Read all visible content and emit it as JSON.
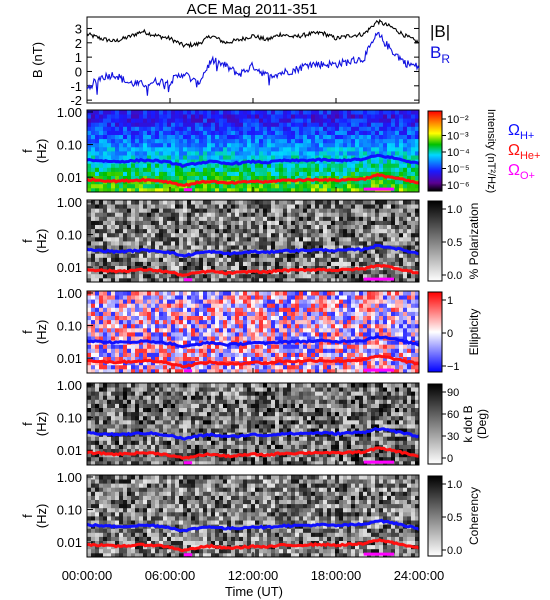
{
  "title": "ACE Mag 2011-351",
  "xlabel": "Time (UT)",
  "x_ticks": [
    "00:00:00",
    "06:00:00",
    "12:00:00",
    "18:00:00",
    "24:00:00"
  ],
  "colors": {
    "B_total": "#000000",
    "B_R": "#1010e0",
    "H": "#1010ff",
    "He": "#ff1010",
    "O": "#ff00ff"
  },
  "chart_data": [
    {
      "type": "line",
      "ylabel": "B (nT)",
      "yticks": [
        "3",
        "2",
        "1",
        "0",
        "-1",
        "-2"
      ],
      "ylim": [
        -2.2,
        3.8
      ],
      "legend": {
        "placement": "right",
        "entries": [
          {
            "name": "|B|",
            "label": "|B|",
            "sub": ""
          },
          {
            "name": "B_R",
            "label": "B",
            "sub": "R"
          }
        ]
      },
      "x_hours": [
        0,
        1,
        2,
        3,
        4,
        5,
        6,
        7,
        8,
        9,
        10,
        11,
        12,
        13,
        14,
        15,
        16,
        17,
        18,
        19,
        20,
        21,
        22,
        23,
        24
      ],
      "series": [
        {
          "name": "|B|",
          "key": "B_total",
          "values": [
            2.6,
            2.3,
            2.1,
            2.4,
            2.8,
            2.5,
            2.3,
            1.8,
            1.9,
            2.5,
            2.0,
            2.2,
            2.5,
            2.2,
            2.6,
            2.4,
            2.6,
            2.7,
            2.3,
            2.5,
            2.6,
            3.5,
            3.1,
            2.5,
            2.0
          ]
        },
        {
          "name": "B_R",
          "key": "B_R",
          "values": [
            -1.2,
            -0.4,
            -0.2,
            -0.8,
            -0.9,
            -0.7,
            -0.7,
            -0.1,
            -0.9,
            0.8,
            0.4,
            -0.2,
            0.4,
            -0.3,
            -0.1,
            0.1,
            0.5,
            0.5,
            0.5,
            0.7,
            0.9,
            2.6,
            1.5,
            0.6,
            0.3
          ]
        }
      ]
    },
    {
      "type": "heatmap",
      "name": "power-spectrum",
      "ylabel": "f (Hz)",
      "yticks": [
        "1.00",
        "0.10",
        "0.01"
      ],
      "colorbar": {
        "label": "Intensity (nT²/Hz)",
        "ticks": [
          "10⁻²",
          "10⁻³",
          "10⁻⁴",
          "10⁻⁵",
          "10⁻⁶"
        ]
      },
      "legend": {
        "placement": "right",
        "entries": [
          {
            "key": "H",
            "label": "Ω",
            "sub": "H+"
          },
          {
            "key": "He",
            "label": "Ω",
            "sub": "He+"
          },
          {
            "key": "O",
            "label": "Ω",
            "sub": "O+"
          }
        ]
      }
    },
    {
      "type": "heatmap",
      "name": "polarization",
      "ylabel": "f (Hz)",
      "yticks": [
        "1.00",
        "0.10",
        "0.01"
      ],
      "colorbar": {
        "label": "% Polarization",
        "ticks": [
          "1.0",
          "0.5",
          "0.0"
        ]
      }
    },
    {
      "type": "heatmap",
      "name": "ellipticity",
      "ylabel": "f (Hz)",
      "yticks": [
        "1.00",
        "0.10",
        "0.01"
      ],
      "colorbar": {
        "label": "Ellipticity",
        "ticks": [
          "1",
          "0",
          "−1"
        ]
      }
    },
    {
      "type": "heatmap",
      "name": "wave-normal-angle",
      "ylabel": "f (Hz)",
      "yticks": [
        "1.00",
        "0.10",
        "0.01"
      ],
      "colorbar": {
        "label": "k dot B",
        "sublabel": "(Deg)",
        "ticks": [
          "90",
          "60",
          "30",
          "0"
        ]
      }
    },
    {
      "type": "heatmap",
      "name": "coherency",
      "ylabel": "f (Hz)",
      "yticks": [
        "1.00",
        "0.10",
        "0.01"
      ],
      "colorbar": {
        "label": "Coherency",
        "ticks": [
          "1.0",
          "0.5",
          "0.0"
        ]
      }
    }
  ],
  "gyrofrequency_lines": {
    "x_hours": [
      0,
      1,
      2,
      3,
      4,
      5,
      6,
      7,
      8,
      9,
      10,
      11,
      12,
      13,
      14,
      15,
      16,
      17,
      18,
      19,
      20,
      21,
      22,
      23,
      24
    ],
    "H_plus_hz": [
      0.034,
      0.032,
      0.03,
      0.031,
      0.033,
      0.032,
      0.028,
      0.022,
      0.027,
      0.03,
      0.026,
      0.027,
      0.03,
      0.028,
      0.032,
      0.032,
      0.033,
      0.034,
      0.032,
      0.034,
      0.035,
      0.046,
      0.04,
      0.032,
      0.026
    ],
    "He_plus_hz": [
      0.0085,
      0.008,
      0.0075,
      0.0078,
      0.0083,
      0.008,
      0.007,
      0.0055,
      0.0068,
      0.0075,
      0.0065,
      0.0068,
      0.0075,
      0.007,
      0.008,
      0.008,
      0.0083,
      0.0085,
      0.008,
      0.0085,
      0.0088,
      0.0115,
      0.01,
      0.008,
      0.0065
    ],
    "O_plus_segments": [
      {
        "start_h": 7.0,
        "end_h": 7.6,
        "hz": 0.0041
      },
      {
        "start_h": 20.0,
        "end_h": 22.2,
        "hz": 0.0043
      }
    ]
  }
}
